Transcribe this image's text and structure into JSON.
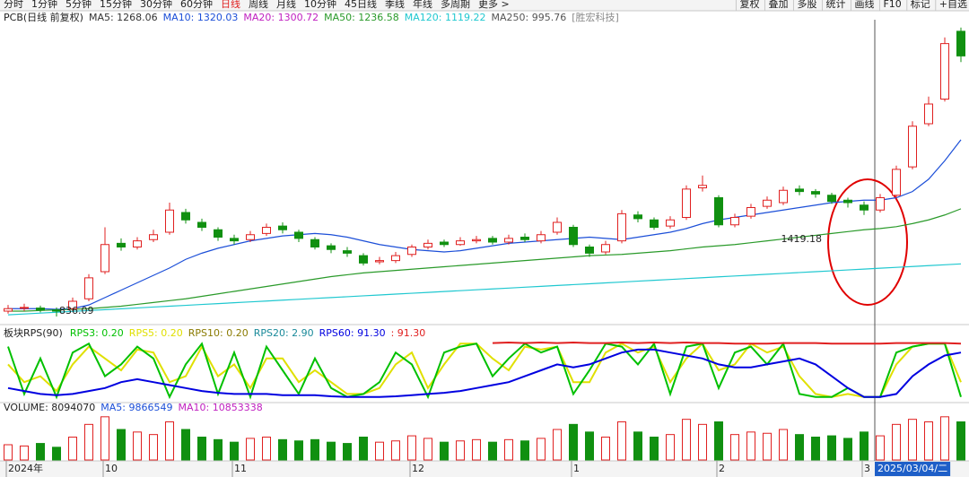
{
  "toolbar": {
    "periods": [
      "分时",
      "1分钟",
      "5分钟",
      "15分钟",
      "30分钟",
      "60分钟",
      "日线",
      "周线",
      "月线",
      "10分钟",
      "45日线",
      "季线",
      "年线",
      "多周期",
      "更多 >"
    ],
    "active": "日线",
    "tools": [
      "复权",
      "叠加",
      "多股",
      "统计",
      "画线",
      "F10",
      "标记",
      "+自选"
    ]
  },
  "chart_data": [
    {
      "type": "candlestick",
      "title": "PCB(日线 前复权)",
      "stock_name": "[胜宏科技]",
      "legend": [
        {
          "text": "MA5: 1268.06",
          "color": "#333333"
        },
        {
          "text": "MA10: 1320.03",
          "color": "#1c4fd8"
        },
        {
          "text": "MA20: 1300.72",
          "color": "#c020c0"
        },
        {
          "text": "MA50: 1236.58",
          "color": "#2a9a2a"
        },
        {
          "text": "MA120: 1119.22",
          "color": "#20c8d0"
        },
        {
          "text": "MA250: 995.76",
          "color": "#555555"
        }
      ],
      "categories": [
        "2024年",
        null,
        null,
        null,
        null,
        null,
        "10",
        null,
        null,
        null,
        null,
        null,
        null,
        null,
        "11",
        null,
        null,
        null,
        null,
        null,
        null,
        null,
        null,
        null,
        null,
        "12",
        null,
        null,
        null,
        null,
        null,
        null,
        null,
        null,
        null,
        "1",
        null,
        null,
        null,
        null,
        null,
        null,
        null,
        null,
        "2",
        null,
        null,
        null,
        null,
        null,
        null,
        null,
        null,
        "3",
        null,
        null,
        null,
        null,
        null,
        null
      ],
      "open": [
        880,
        905,
        905,
        890,
        900,
        980,
        1200,
        1430,
        1400,
        1460,
        1520,
        1680,
        1600,
        1540,
        1470,
        1460,
        1510,
        1570,
        1520,
        1460,
        1410,
        1370,
        1330,
        1280,
        1290,
        1340,
        1400,
        1440,
        1420,
        1450,
        1470,
        1440,
        1480,
        1450,
        1520,
        1560,
        1400,
        1360,
        1450,
        1660,
        1620,
        1570,
        1640,
        1880,
        1800,
        1580,
        1650,
        1730,
        1760,
        1870,
        1850,
        1820,
        1780,
        1740,
        1700,
        1820,
        2050,
        2400,
        2600,
        3150
      ],
      "high": [
        930,
        940,
        925,
        910,
        990,
        1180,
        1560,
        1470,
        1480,
        1540,
        1760,
        1710,
        1630,
        1560,
        1500,
        1530,
        1590,
        1600,
        1540,
        1480,
        1430,
        1400,
        1350,
        1320,
        1360,
        1420,
        1460,
        1460,
        1480,
        1490,
        1490,
        1500,
        1510,
        1530,
        1640,
        1580,
        1420,
        1450,
        1700,
        1690,
        1640,
        1650,
        1900,
        1980,
        1820,
        1670,
        1750,
        1810,
        1890,
        1900,
        1870,
        1840,
        1800,
        1770,
        1830,
        2060,
        2420,
        2620,
        3100,
        3180
      ],
      "low": [
        860,
        880,
        870,
        836.09,
        880,
        960,
        1180,
        1370,
        1380,
        1440,
        1500,
        1590,
        1530,
        1450,
        1420,
        1440,
        1490,
        1510,
        1440,
        1380,
        1350,
        1320,
        1250,
        1260,
        1270,
        1320,
        1380,
        1400,
        1410,
        1430,
        1420,
        1420,
        1440,
        1430,
        1500,
        1400,
        1320,
        1340,
        1430,
        1600,
        1540,
        1550,
        1620,
        1850,
        1560,
        1560,
        1630,
        1710,
        1740,
        1820,
        1800,
        1750,
        1720,
        1660,
        1680,
        1800,
        2030,
        2380,
        2580,
        2900
      ],
      "close": [
        900,
        910,
        890,
        880,
        960,
        1150,
        1420,
        1400,
        1450,
        1500,
        1700,
        1620,
        1560,
        1480,
        1450,
        1500,
        1560,
        1540,
        1470,
        1400,
        1380,
        1350,
        1270,
        1290,
        1330,
        1400,
        1430,
        1420,
        1450,
        1460,
        1440,
        1470,
        1460,
        1500,
        1600,
        1420,
        1350,
        1420,
        1670,
        1630,
        1560,
        1620,
        1870,
        1900,
        1580,
        1640,
        1720,
        1780,
        1860,
        1850,
        1830,
        1770,
        1760,
        1700,
        1800,
        2030,
        2380,
        2560,
        3050,
        2950
      ],
      "up_color": "#e02020",
      "down_color": "#109010",
      "lines": [
        {
          "color": "#1c4fd8",
          "values": [
            900,
            900,
            900,
            895,
            900,
            930,
            990,
            1050,
            1110,
            1170,
            1230,
            1300,
            1350,
            1390,
            1420,
            1450,
            1470,
            1490,
            1500,
            1510,
            1500,
            1480,
            1450,
            1420,
            1400,
            1380,
            1370,
            1360,
            1370,
            1390,
            1410,
            1430,
            1440,
            1450,
            1460,
            1470,
            1480,
            1470,
            1460,
            1480,
            1500,
            1520,
            1550,
            1590,
            1620,
            1640,
            1660,
            1680,
            1700,
            1720,
            1740,
            1760,
            1770,
            1780,
            1780,
            1800,
            1850,
            1950,
            2100,
            2270
          ]
        },
        {
          "color": "#2a9a2a",
          "values": [
            880,
            880,
            885,
            890,
            895,
            900,
            910,
            920,
            935,
            950,
            965,
            980,
            1000,
            1020,
            1040,
            1060,
            1080,
            1100,
            1120,
            1140,
            1160,
            1175,
            1190,
            1200,
            1210,
            1220,
            1230,
            1240,
            1250,
            1260,
            1270,
            1280,
            1290,
            1300,
            1310,
            1320,
            1330,
            1335,
            1340,
            1350,
            1360,
            1370,
            1385,
            1400,
            1410,
            1420,
            1435,
            1450,
            1465,
            1480,
            1495,
            1510,
            1525,
            1540,
            1550,
            1565,
            1590,
            1620,
            1660,
            1710
          ]
        },
        {
          "color": "#20c8d0",
          "values": [
            850,
            857,
            864,
            871,
            878,
            885,
            892,
            899,
            906,
            913,
            920,
            927,
            934,
            941,
            948,
            955,
            962,
            969,
            976,
            983,
            990,
            997,
            1004,
            1011,
            1018,
            1025,
            1032,
            1039,
            1046,
            1053,
            1060,
            1067,
            1074,
            1081,
            1088,
            1095,
            1102,
            1109,
            1116,
            1123,
            1130,
            1137,
            1144,
            1151,
            1158,
            1165,
            1172,
            1179,
            1186,
            1193,
            1200,
            1207,
            1214,
            1221,
            1228,
            1235,
            1242,
            1249,
            1256,
            1263
          ]
        }
      ],
      "annotations": [
        836.09,
        1419.18
      ],
      "ylim": [
        800,
        3200
      ]
    },
    {
      "type": "line",
      "title": "板块RPS(90)",
      "legend": [
        {
          "text": "RPS3: 0.20",
          "color": "#00c000"
        },
        {
          "text": "RPS5: 0.20",
          "color": "#e0e000"
        },
        {
          "text": "RPS10: 0.20",
          "color": "#8a7a00"
        },
        {
          "text": "RPS20: 2.90",
          "color": "#1a8a9a"
        },
        {
          "text": "RPS60: 91.30",
          "color": "#0000e0"
        },
        {
          "text": ": 91.30",
          "color": "#e02020"
        }
      ],
      "series": [
        {
          "color": "#e0e000",
          "values": [
            60,
            30,
            40,
            15,
            60,
            90,
            70,
            50,
            85,
            80,
            30,
            40,
            90,
            40,
            60,
            20,
            70,
            70,
            30,
            50,
            30,
            10,
            10,
            20,
            60,
            80,
            20,
            60,
            95,
            95,
            70,
            50,
            90,
            85,
            90,
            30,
            30,
            80,
            95,
            80,
            90,
            30,
            70,
            95,
            50,
            60,
            95,
            80,
            90,
            40,
            10,
            5,
            10,
            5,
            5,
            60,
            90,
            95,
            95,
            30
          ]
        },
        {
          "color": "#00c000",
          "values": [
            90,
            10,
            70,
            5,
            80,
            95,
            40,
            60,
            90,
            70,
            5,
            60,
            95,
            10,
            80,
            5,
            90,
            50,
            10,
            70,
            20,
            5,
            10,
            30,
            80,
            60,
            5,
            80,
            90,
            95,
            40,
            70,
            95,
            80,
            90,
            10,
            50,
            95,
            90,
            60,
            95,
            10,
            90,
            95,
            20,
            80,
            90,
            60,
            95,
            10,
            5,
            5,
            20,
            5,
            5,
            80,
            90,
            95,
            95,
            5
          ]
        },
        {
          "color": "#0000e0",
          "values": [
            20,
            15,
            10,
            8,
            10,
            15,
            20,
            30,
            35,
            30,
            25,
            20,
            15,
            12,
            10,
            10,
            10,
            8,
            8,
            8,
            6,
            5,
            5,
            5,
            6,
            8,
            10,
            12,
            15,
            20,
            25,
            30,
            40,
            50,
            60,
            55,
            60,
            70,
            80,
            85,
            85,
            80,
            75,
            70,
            60,
            55,
            55,
            60,
            65,
            70,
            60,
            40,
            20,
            5,
            5,
            10,
            40,
            60,
            75,
            80
          ]
        },
        {
          "color": "#e02020",
          "values": [
            null,
            null,
            null,
            null,
            null,
            null,
            null,
            null,
            null,
            null,
            null,
            null,
            null,
            null,
            null,
            null,
            null,
            null,
            null,
            null,
            null,
            null,
            null,
            null,
            null,
            null,
            null,
            null,
            null,
            null,
            96,
            97,
            96,
            97,
            96,
            97,
            96,
            96,
            97,
            96,
            97,
            96,
            97,
            96,
            96,
            95,
            95,
            95,
            96,
            96,
            96,
            95,
            95,
            95,
            95,
            96,
            96,
            96,
            96,
            95
          ]
        }
      ],
      "ylim": [
        0,
        100
      ]
    },
    {
      "type": "bar",
      "legend": [
        {
          "text": "VOLUME: 8094070",
          "color": "#222222"
        },
        {
          "text": "MA5: 9866549",
          "color": "#1c4fd8"
        },
        {
          "text": "MA10: 10853338",
          "color": "#c020c0"
        }
      ],
      "values": [
        6000000,
        5500000,
        6500000,
        5000000,
        9000000,
        14000000,
        17000000,
        12000000,
        11000000,
        10000000,
        15000000,
        12000000,
        9000000,
        8000000,
        7000000,
        8500000,
        9000000,
        8000000,
        7500000,
        8000000,
        7000000,
        6500000,
        9000000,
        7000000,
        7500000,
        9500000,
        8500000,
        7000000,
        7500000,
        8000000,
        7000000,
        8000000,
        7500000,
        8500000,
        12000000,
        14000000,
        11000000,
        9000000,
        15000000,
        11000000,
        9000000,
        10000000,
        16000000,
        14000000,
        15000000,
        10000000,
        11000000,
        10500000,
        12000000,
        10000000,
        9000000,
        9500000,
        8500000,
        11000000,
        9500000,
        14000000,
        16000000,
        15000000,
        17000000,
        15000000
      ],
      "ylim": [
        0,
        18000000
      ]
    }
  ],
  "cursor_label": "2025/03/04/二"
}
